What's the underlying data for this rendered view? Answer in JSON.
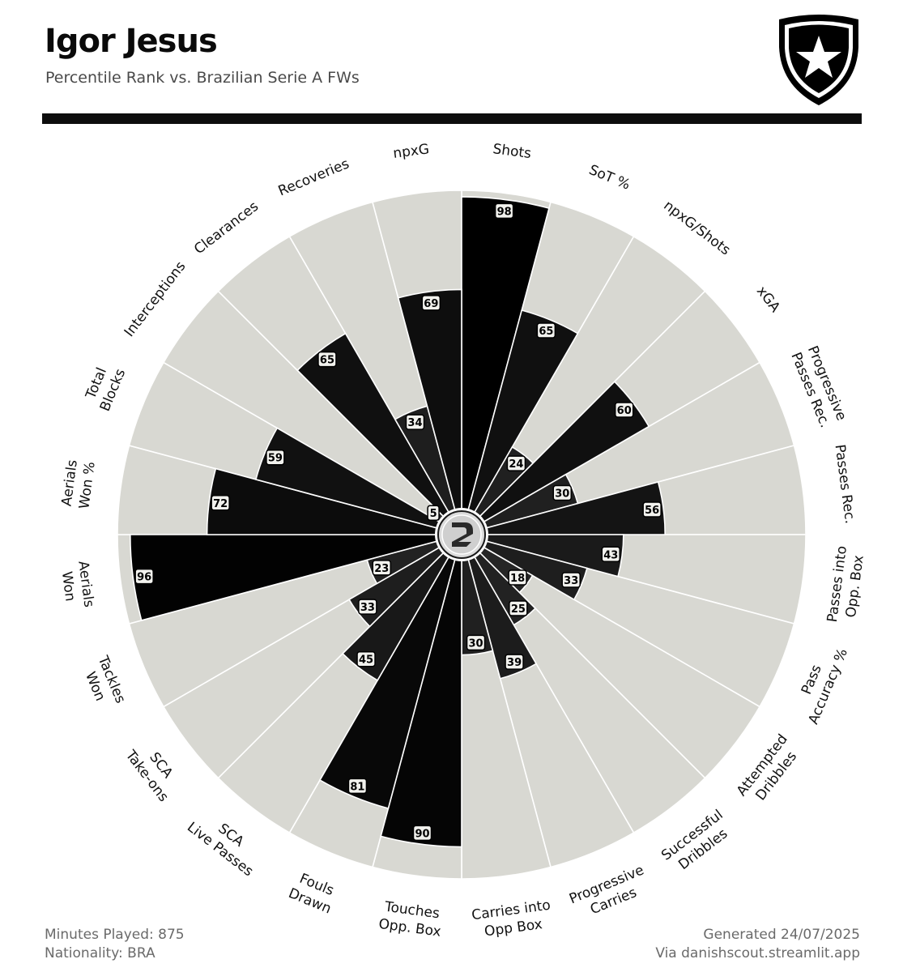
{
  "header": {
    "player_name": "Igor Jesus",
    "subtitle": "Percentile Rank vs. Brazilian Serie A FWs"
  },
  "footer": {
    "minutes": "Minutes Played: 875",
    "nationality": "Nationality: BRA",
    "generated": "Generated 24/07/2025",
    "source": "Via danishscout.streamlit.app"
  },
  "colors": {
    "background": "#ffffff",
    "slice_background": "#d8d8d2",
    "text": "#111111"
  },
  "chart_data": {
    "type": "polar_bar",
    "title": "Percentile Rank vs. Brazilian Serie A FWs",
    "rlim": [
      0,
      100
    ],
    "start_angle_deg": 90,
    "direction": "clockwise",
    "categories": [
      {
        "label": [
          "Shots"
        ],
        "value": 98,
        "color": "#000000"
      },
      {
        "label": [
          "SoT %"
        ],
        "value": 65,
        "color": "#101010"
      },
      {
        "label": [
          "npxG/Shots"
        ],
        "value": 24,
        "color": "#202020"
      },
      {
        "label": [
          "xGA"
        ],
        "value": 60,
        "color": "#101010"
      },
      {
        "label": [
          "Progressive",
          "Passes Rec."
        ],
        "value": 30,
        "color": "#202020"
      },
      {
        "label": [
          "Passes Rec."
        ],
        "value": 56,
        "color": "#141414"
      },
      {
        "label": [
          "Passes into",
          "Opp. Box"
        ],
        "value": 43,
        "color": "#1a1a1a"
      },
      {
        "label": [
          "Pass",
          "Accuracy %"
        ],
        "value": 33,
        "color": "#1e1e1e"
      },
      {
        "label": [
          "Attempted",
          "Dribbles"
        ],
        "value": 18,
        "color": "#262626"
      },
      {
        "label": [
          "Successful",
          "Dribbles"
        ],
        "value": 25,
        "color": "#222222"
      },
      {
        "label": [
          "Progressive",
          "Carries"
        ],
        "value": 39,
        "color": "#1c1c1c"
      },
      {
        "label": [
          "Carries into",
          "Opp Box"
        ],
        "value": 30,
        "color": "#202020"
      },
      {
        "label": [
          "Touches",
          "Opp. Box"
        ],
        "value": 90,
        "color": "#050505"
      },
      {
        "label": [
          "Fouls",
          "Drawn"
        ],
        "value": 81,
        "color": "#080808"
      },
      {
        "label": [
          "SCA",
          "Live Passes"
        ],
        "value": 45,
        "color": "#181818"
      },
      {
        "label": [
          "SCA",
          "Take-ons"
        ],
        "value": 33,
        "color": "#1e1e1e"
      },
      {
        "label": [
          "Tackles",
          "Won"
        ],
        "value": 23,
        "color": "#222222"
      },
      {
        "label": [
          "Aerials",
          "Won"
        ],
        "value": 96,
        "color": "#020202"
      },
      {
        "label": [
          "Aerials",
          "Won %"
        ],
        "value": 72,
        "color": "#0c0c0c"
      },
      {
        "label": [
          "Total",
          "Blocks"
        ],
        "value": 59,
        "color": "#111111"
      },
      {
        "label": [
          "Interceptions"
        ],
        "value": 5,
        "color": "#2a2a2a"
      },
      {
        "label": [
          "Clearances"
        ],
        "value": 65,
        "color": "#101010"
      },
      {
        "label": [
          "Recoveries"
        ],
        "value": 34,
        "color": "#1e1e1e"
      },
      {
        "label": [
          "npxG"
        ],
        "value": 69,
        "color": "#0e0e0e"
      }
    ]
  }
}
